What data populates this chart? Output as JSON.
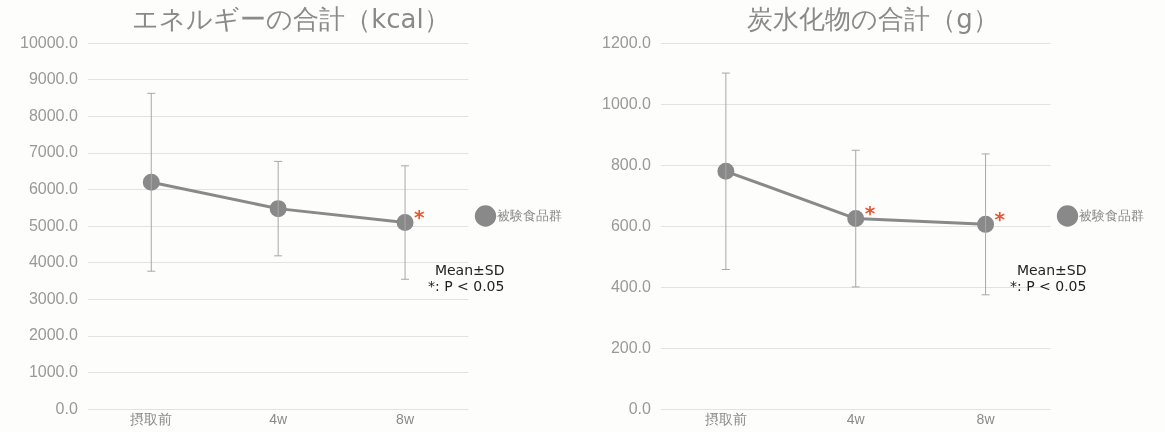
{
  "chart_data": [
    {
      "type": "line",
      "title": "エネルギーの合計（kcal）",
      "categories": [
        "摂取前",
        "4w",
        "8w"
      ],
      "series": [
        {
          "name": "被験食品群",
          "color": "#898989",
          "values": [
            6200,
            5480,
            5100
          ],
          "errors": [
            2430,
            1290,
            1550
          ]
        }
      ],
      "ylim": [
        0,
        10000
      ],
      "yticks": [
        {
          "value": 0,
          "label": "0.0"
        },
        {
          "value": 1000,
          "label": "1000.0"
        },
        {
          "value": 2000,
          "label": "2000.0"
        },
        {
          "value": 3000,
          "label": "3000.0"
        },
        {
          "value": 4000,
          "label": "4000.0"
        },
        {
          "value": 5000,
          "label": "5000.0"
        },
        {
          "value": 6000,
          "label": "6000.0"
        },
        {
          "value": 7000,
          "label": "7000.0"
        },
        {
          "value": 8000,
          "label": "8000.0"
        },
        {
          "value": 9000,
          "label": "9000.0"
        },
        {
          "value": 10000,
          "label": "10000.0"
        }
      ],
      "grid": "y",
      "legend": "right",
      "marker": "circle",
      "line_style": "solid",
      "annotations": [
        {
          "text": "*",
          "x": "8w",
          "y": 5100
        },
        "Mean±SD",
        "*: P < 0.05"
      ]
    },
    {
      "type": "line",
      "title": "炭水化物の合計（g）",
      "categories": [
        "摂取前",
        "4w",
        "8w"
      ],
      "series": [
        {
          "name": "被験食品群",
          "color": "#898989",
          "values": [
            780,
            625,
            606
          ],
          "errors": [
            322,
            224,
            231
          ]
        }
      ],
      "ylim": [
        0,
        1200
      ],
      "yticks": [
        {
          "value": 0,
          "label": "0.0"
        },
        {
          "value": 200,
          "label": "200.0"
        },
        {
          "value": 400,
          "label": "400.0"
        },
        {
          "value": 600,
          "label": "600.0"
        },
        {
          "value": 800,
          "label": "800.0"
        },
        {
          "value": 1000,
          "label": "1000.0"
        },
        {
          "value": 1200,
          "label": "1200.0"
        }
      ],
      "grid": "y",
      "legend": "right",
      "marker": "circle",
      "line_style": "solid",
      "annotations": [
        {
          "text": "*",
          "x": "4w",
          "y": 625
        },
        {
          "text": "*",
          "x": "8w",
          "y": 606
        },
        "Mean±SD",
        "*: P < 0.05"
      ]
    }
  ]
}
